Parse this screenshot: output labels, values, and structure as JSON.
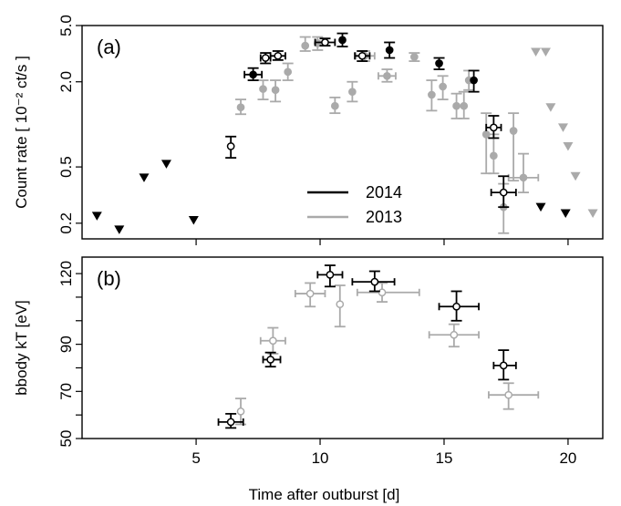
{
  "chart_data": [
    {
      "panel_label": "(a)",
      "type": "scatter",
      "x_scale": "linear",
      "y_scale": "log",
      "xlim": [
        0.4,
        21.4
      ],
      "ylim": [
        0.155,
        5.0
      ],
      "xticks": [
        5,
        10,
        15,
        20
      ],
      "yticks": [
        0.2,
        0.5,
        2.0,
        5.0
      ],
      "ytick_labels": [
        "0.2",
        "0.5",
        "2.0",
        "5.0"
      ],
      "ylabel": "Count rate [ 10⁻² ct/s ]",
      "colors": {
        "2014": "#000000",
        "2013": "#aaaaaa"
      },
      "legend": {
        "position": "center-bottom",
        "entries": [
          {
            "label": "2014",
            "color": "#000000"
          },
          {
            "label": "2013",
            "color": "#aaaaaa"
          }
        ]
      },
      "series": [
        {
          "name": "2014",
          "color": "#000000",
          "points": [
            {
              "x": 6.4,
              "y": 0.7,
              "yerr": [
                0.58,
                0.82
              ],
              "filled": false
            },
            {
              "x": 7.3,
              "y": 2.25,
              "xerr": [
                6.95,
                7.65
              ],
              "yerr": [
                2.05,
                2.5
              ],
              "filled": true
            },
            {
              "x": 7.8,
              "y": 2.95,
              "xerr": [
                7.6,
                8.0
              ],
              "yerr": [
                2.7,
                3.2
              ],
              "filled": false
            },
            {
              "x": 8.3,
              "y": 3.05,
              "xerr": [
                8.0,
                8.6
              ],
              "yerr": [
                2.85,
                3.3
              ],
              "filled": false
            },
            {
              "x": 10.2,
              "y": 3.8,
              "xerr": [
                9.8,
                10.6
              ],
              "yerr": [
                3.6,
                4.05
              ],
              "filled": false
            },
            {
              "x": 10.9,
              "y": 3.95,
              "yerr": [
                3.55,
                4.4
              ],
              "filled": true
            },
            {
              "x": 11.7,
              "y": 3.05,
              "xerr": [
                11.4,
                12.0
              ],
              "yerr": [
                2.8,
                3.3
              ],
              "filled": false
            },
            {
              "x": 12.8,
              "y": 3.35,
              "yerr": [
                2.95,
                3.8
              ],
              "filled": true
            },
            {
              "x": 14.8,
              "y": 2.7,
              "yerr": [
                2.45,
                2.95
              ],
              "filled": true
            },
            {
              "x": 16.2,
              "y": 2.05,
              "yerr": [
                1.7,
                2.4
              ],
              "filled": true
            },
            {
              "x": 17.0,
              "y": 0.95,
              "xerr": [
                16.7,
                17.3
              ],
              "yerr": [
                0.8,
                1.15
              ],
              "filled": false
            },
            {
              "x": 17.4,
              "y": 0.33,
              "xerr": [
                16.9,
                17.9
              ],
              "yerr": [
                0.26,
                0.43
              ],
              "filled": false
            }
          ],
          "upper_limits": [
            {
              "x": 1.0,
              "y": 0.225
            },
            {
              "x": 1.9,
              "y": 0.18
            },
            {
              "x": 2.9,
              "y": 0.42
            },
            {
              "x": 3.8,
              "y": 0.525
            },
            {
              "x": 4.9,
              "y": 0.21
            },
            {
              "x": 18.9,
              "y": 0.26
            },
            {
              "x": 19.9,
              "y": 0.235
            }
          ]
        },
        {
          "name": "2013",
          "color": "#aaaaaa",
          "points": [
            {
              "x": 6.8,
              "y": 1.32,
              "yerr": [
                1.18,
                1.5
              ],
              "filled": true
            },
            {
              "x": 7.7,
              "y": 1.78,
              "yerr": [
                1.5,
                2.05
              ],
              "filled": true
            },
            {
              "x": 8.2,
              "y": 1.75,
              "yerr": [
                1.45,
                2.05
              ],
              "filled": true
            },
            {
              "x": 8.7,
              "y": 2.35,
              "yerr": [
                2.05,
                2.7
              ],
              "filled": true
            },
            {
              "x": 9.4,
              "y": 3.6,
              "yerr": [
                3.3,
                4.15
              ],
              "filled": true
            },
            {
              "x": 9.9,
              "y": 3.75,
              "yerr": [
                3.35,
                4.15
              ],
              "filled": true
            },
            {
              "x": 10.6,
              "y": 1.35,
              "yerr": [
                1.2,
                1.55
              ],
              "filled": true
            },
            {
              "x": 11.3,
              "y": 1.7,
              "yerr": [
                1.45,
                2.0
              ],
              "filled": true
            },
            {
              "x": 11.8,
              "y": 3.05,
              "xerr": [
                11.45,
                12.2
              ],
              "yerr": [
                2.8,
                3.3
              ],
              "filled": true
            },
            {
              "x": 12.7,
              "y": 2.2,
              "xerr": [
                12.35,
                13.05
              ],
              "yerr": [
                2.0,
                2.45
              ],
              "filled": true
            },
            {
              "x": 13.8,
              "y": 3.0,
              "yerr": [
                2.8,
                3.2
              ],
              "filled": true
            },
            {
              "x": 14.5,
              "y": 1.62,
              "yerr": [
                1.25,
                2.05
              ],
              "filled": true
            },
            {
              "x": 14.95,
              "y": 1.85,
              "yerr": [
                1.5,
                2.2
              ],
              "filled": true
            },
            {
              "x": 15.5,
              "y": 1.35,
              "yerr": [
                1.1,
                1.65
              ],
              "filled": true
            },
            {
              "x": 15.8,
              "y": 1.35,
              "yerr": [
                1.1,
                1.7
              ],
              "filled": true
            },
            {
              "x": 16.0,
              "y": 2.05,
              "yerr": [
                1.75,
                2.4
              ],
              "filled": true
            },
            {
              "x": 16.7,
              "y": 0.85,
              "yerr": [
                0.45,
                1.2
              ],
              "filled": true
            },
            {
              "x": 17.0,
              "y": 0.6,
              "yerr": [
                0.45,
                0.85
              ],
              "filled": true
            },
            {
              "x": 17.4,
              "y": 0.26,
              "yerr": [
                0.17,
                0.38
              ],
              "filled": true
            },
            {
              "x": 17.8,
              "y": 0.9,
              "yerr": [
                0.4,
                1.2
              ],
              "filled": true
            },
            {
              "x": 18.2,
              "y": 0.42,
              "xerr": [
                17.6,
                18.8
              ],
              "yerr": [
                0.33,
                0.62
              ],
              "filled": true
            }
          ],
          "upper_limits": [
            {
              "x": 18.7,
              "y": 3.25
            },
            {
              "x": 19.1,
              "y": 3.25
            },
            {
              "x": 19.3,
              "y": 1.32
            },
            {
              "x": 19.8,
              "y": 0.95
            },
            {
              "x": 20.0,
              "y": 0.7
            },
            {
              "x": 20.3,
              "y": 0.43
            },
            {
              "x": 21.0,
              "y": 0.235
            }
          ]
        }
      ]
    },
    {
      "panel_label": "(b)",
      "type": "scatter",
      "x_scale": "linear",
      "y_scale": "linear",
      "xlim": [
        0.4,
        21.4
      ],
      "ylim": [
        50,
        127
      ],
      "xticks": [
        5,
        10,
        15,
        20
      ],
      "xtick_labels": [
        "5",
        "10",
        "15",
        "20"
      ],
      "yticks": [
        50,
        70,
        90,
        120
      ],
      "ytick_labels": [
        "50",
        "70",
        "90",
        "120"
      ],
      "ytick_minor": [
        60,
        80,
        100,
        110
      ],
      "xlabel": "Time after outburst [d]",
      "ylabel": "bbody kT [eV]",
      "series": [
        {
          "name": "2014",
          "color": "#000000",
          "points": [
            {
              "x": 6.4,
              "y": 57,
              "xerr": [
                5.9,
                6.9
              ],
              "yerr": [
                54.5,
                60.5
              ]
            },
            {
              "x": 8.0,
              "y": 83.5,
              "xerr": [
                7.7,
                8.4
              ],
              "yerr": [
                80.5,
                86.5
              ]
            },
            {
              "x": 10.4,
              "y": 119.5,
              "xerr": [
                9.9,
                10.9
              ],
              "yerr": [
                114.5,
                123.5
              ]
            },
            {
              "x": 12.2,
              "y": 116.5,
              "xerr": [
                11.3,
                13.0
              ],
              "yerr": [
                112.5,
                121
              ]
            },
            {
              "x": 15.5,
              "y": 106,
              "xerr": [
                14.8,
                16.4
              ],
              "yerr": [
                100,
                112.5
              ]
            },
            {
              "x": 17.4,
              "y": 81,
              "xerr": [
                17.0,
                17.9
              ],
              "yerr": [
                75,
                87.5
              ]
            }
          ]
        },
        {
          "name": "2013",
          "color": "#aaaaaa",
          "points": [
            {
              "x": 6.8,
              "y": 61.5,
              "yerr": [
                56,
                67
              ]
            },
            {
              "x": 8.1,
              "y": 91.5,
              "xerr": [
                7.6,
                8.6
              ],
              "yerr": [
                86,
                97
              ]
            },
            {
              "x": 9.6,
              "y": 111.5,
              "xerr": [
                9.0,
                10.2
              ],
              "yerr": [
                106,
                116
              ]
            },
            {
              "x": 10.8,
              "y": 107,
              "yerr": [
                97.5,
                115
              ]
            },
            {
              "x": 12.5,
              "y": 112,
              "xerr": [
                11.5,
                14.0
              ],
              "yerr": [
                108,
                116
              ]
            },
            {
              "x": 15.4,
              "y": 94,
              "xerr": [
                14.4,
                16.4
              ],
              "yerr": [
                89,
                98.5
              ]
            },
            {
              "x": 17.6,
              "y": 68.5,
              "xerr": [
                16.8,
                18.8
              ],
              "yerr": [
                62.5,
                73.5
              ]
            }
          ]
        }
      ]
    }
  ]
}
